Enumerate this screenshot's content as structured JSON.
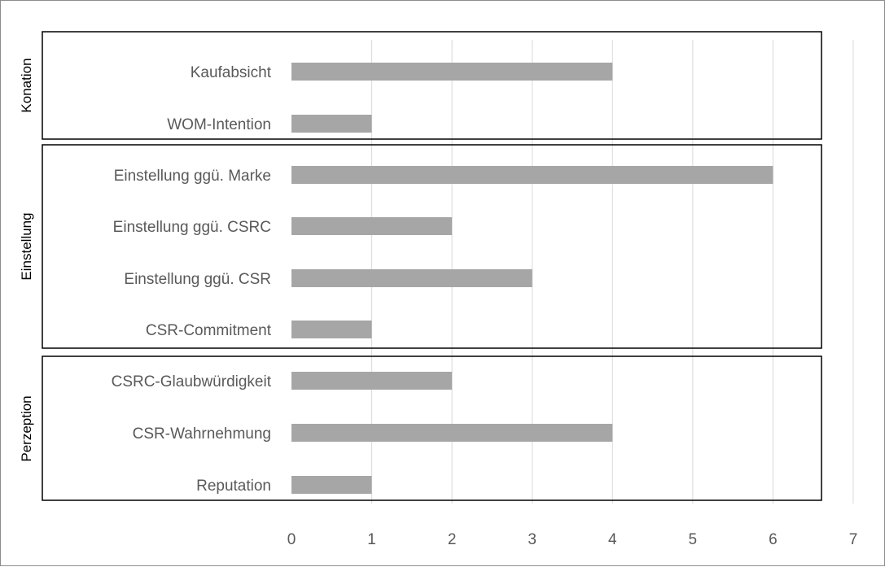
{
  "chart_data": {
    "type": "bar",
    "orientation": "horizontal",
    "title": "",
    "xlabel": "",
    "ylabel": "",
    "xlim": [
      0,
      7
    ],
    "x_ticks": [
      0,
      1,
      2,
      3,
      4,
      5,
      6,
      7
    ],
    "grid": "vertical",
    "bar_color": "#a6a6a6",
    "categories": [
      "Kaufabsicht",
      "WOM-Intention",
      "Einstellung ggü. Marke",
      "Einstellung ggü. CSRC",
      "Einstellung ggü. CSR",
      "CSR-Commitment",
      "CSRC-Glaubwürdigkeit",
      "CSR-Wahrnehmung",
      "Reputation"
    ],
    "values": [
      4,
      1,
      6,
      2,
      3,
      1,
      2,
      4,
      1
    ],
    "groups": [
      {
        "label": "Konation",
        "categories": [
          "Kaufabsicht",
          "WOM-Intention"
        ]
      },
      {
        "label": "Einstellung",
        "categories": [
          "Einstellung ggü. Marke",
          "Einstellung ggü. CSRC",
          "Einstellung ggü. CSR",
          "CSR-Commitment"
        ]
      },
      {
        "label": "Perzeption",
        "categories": [
          "CSRC-Glaubwürdigkeit",
          "CSR-Wahrnehmung",
          "Reputation"
        ]
      }
    ]
  }
}
